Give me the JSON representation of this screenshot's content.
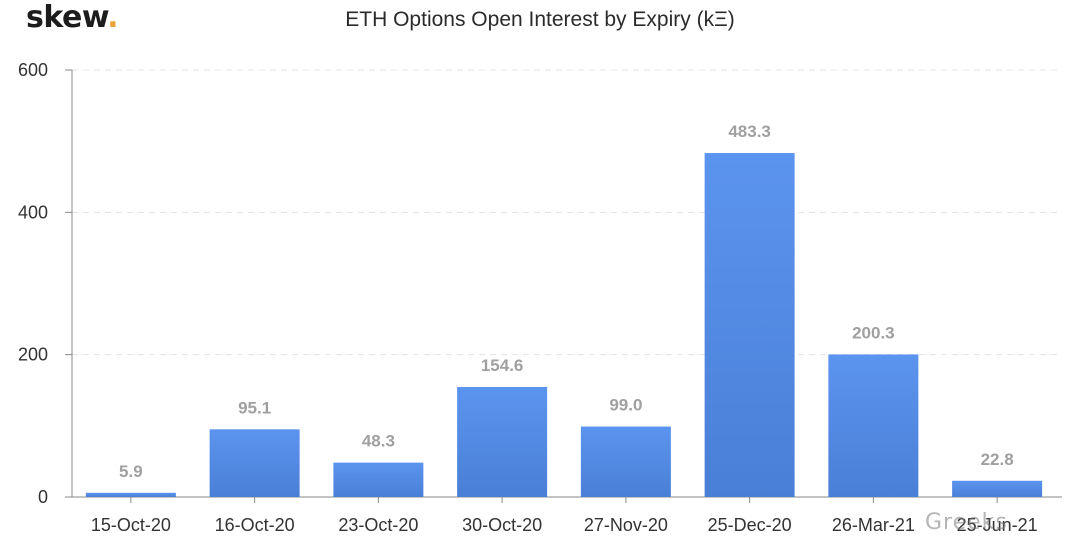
{
  "brand": {
    "logo_text": "skew",
    "logo_dot": ".",
    "accent_color": "#e8a33a"
  },
  "watermark": {
    "text": "Greeks"
  },
  "chart_data": {
    "type": "bar",
    "title": "ETH Options Open Interest by Expiry (kΞ)",
    "xlabel": "",
    "ylabel": "",
    "categories": [
      "15-Oct-20",
      "16-Oct-20",
      "23-Oct-20",
      "30-Oct-20",
      "27-Nov-20",
      "25-Dec-20",
      "26-Mar-21",
      "25-Jun-21"
    ],
    "values": [
      5.9,
      95.1,
      48.3,
      154.6,
      99.0,
      483.3,
      200.3,
      22.8
    ],
    "data_labels": [
      "5.9",
      "95.1",
      "48.3",
      "154.6",
      "99.0",
      "483.3",
      "200.3",
      "22.8"
    ],
    "yticks": [
      0,
      200,
      400,
      600
    ],
    "ylim": [
      0,
      600
    ],
    "grid": true,
    "bar_color_top": "#5b94ef",
    "bar_color_bottom": "#4a7fd6",
    "legend": "none"
  }
}
